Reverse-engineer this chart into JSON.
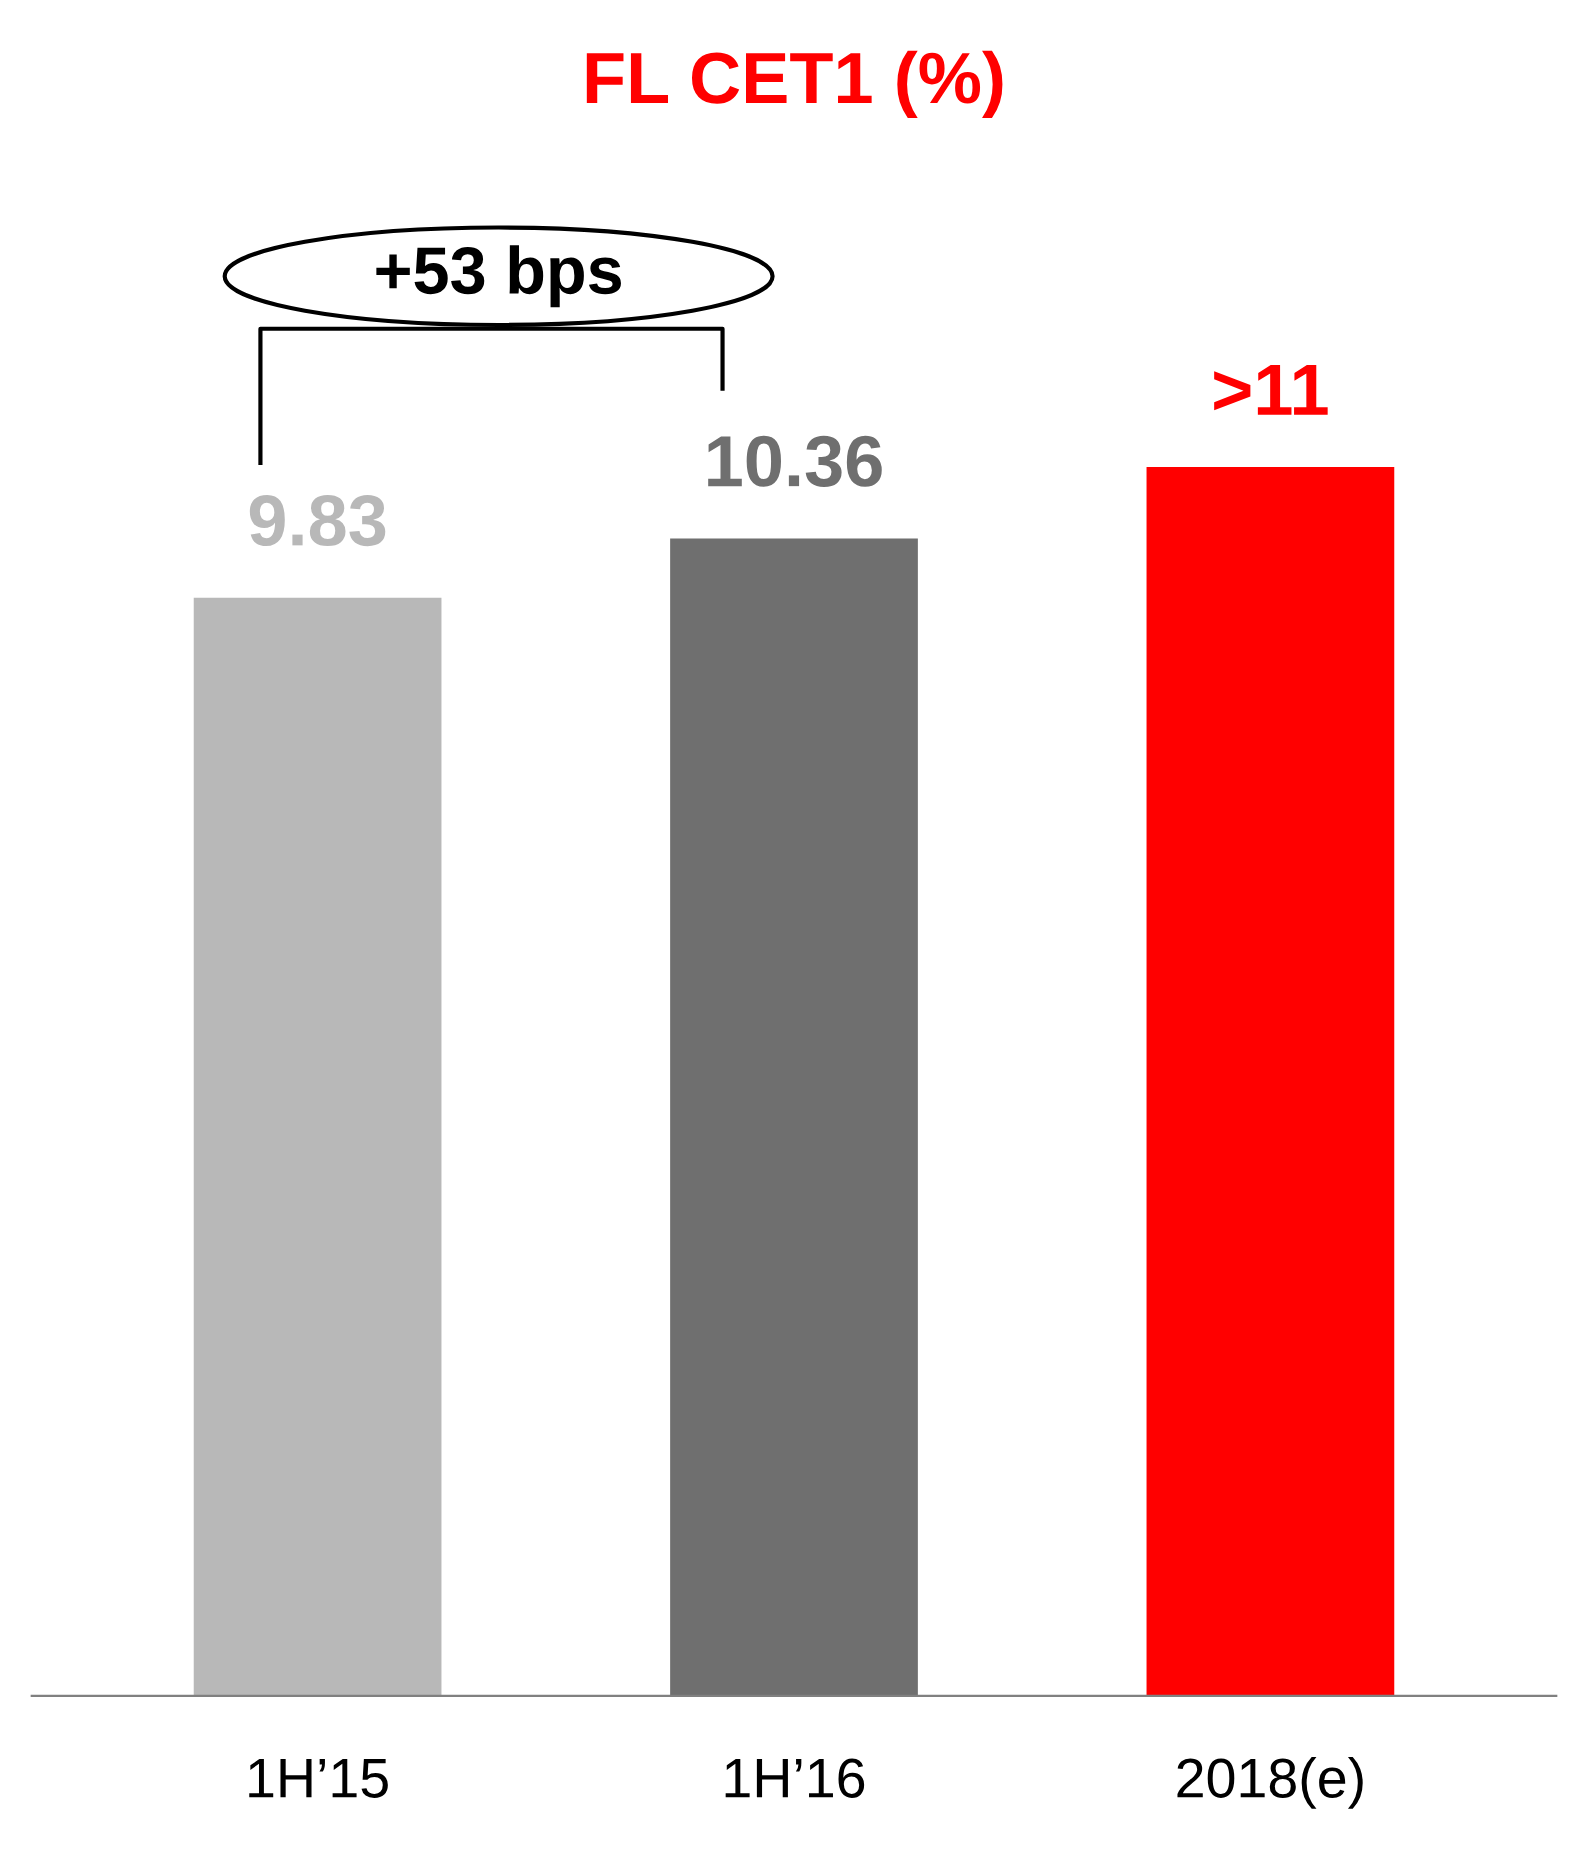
{
  "chart_data": {
    "type": "bar",
    "title": "FL CET1 (%)",
    "categories": [
      "1H’15",
      "1H’16",
      "2018(e)"
    ],
    "values": [
      9.83,
      10.36,
      11
    ],
    "colors": [
      "#b8b8b8",
      "#6f6f6f",
      "#ff0000"
    ],
    "value_labels": [
      "9.83",
      "10.36",
      ">11"
    ],
    "annotations": [
      "+53 bps"
    ],
    "grid": false
  }
}
